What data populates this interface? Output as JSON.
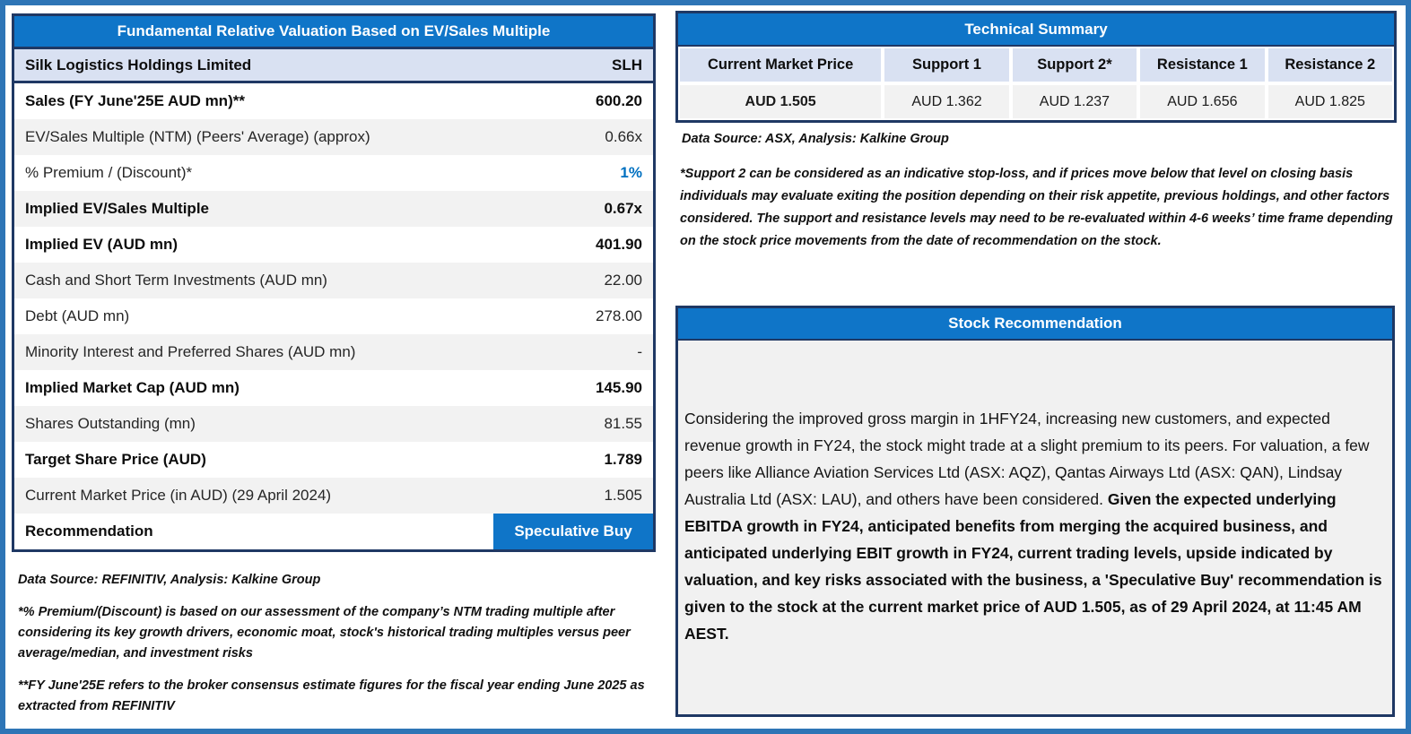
{
  "colors": {
    "frame_blue": "#2E75B6",
    "header_blue": "#0F75C8",
    "border_navy": "#1F3864",
    "light_blue_row": "#D9E1F2",
    "stripe_gray": "#F2F2F2",
    "premium_value_blue": "#0070C0"
  },
  "valuation": {
    "title": "Fundamental Relative Valuation Based on EV/Sales Multiple",
    "company": "Silk Logistics Holdings Limited",
    "ticker": "SLH",
    "rows": [
      {
        "label": "Sales (FY June'25E AUD mn)**",
        "value": "600.20"
      },
      {
        "label": "EV/Sales Multiple (NTM)  (Peers' Average) (approx)",
        "value": "0.66x"
      },
      {
        "label": "% Premium / (Discount)*",
        "value": "1%"
      },
      {
        "label": "Implied EV/Sales Multiple",
        "value": "0.67x"
      },
      {
        "label": "Implied EV (AUD mn)",
        "value": "401.90"
      },
      {
        "label": "Cash and Short Term Investments (AUD mn)",
        "value": "22.00"
      },
      {
        "label": "Debt (AUD mn)",
        "value": "278.00"
      },
      {
        "label": "Minority Interest and Preferred Shares (AUD mn)",
        "value": "-"
      },
      {
        "label": "Implied Market Cap (AUD mn)",
        "value": "145.90"
      },
      {
        "label": "Shares Outstanding (mn)",
        "value": "81.55"
      },
      {
        "label": "Target Share Price (AUD)",
        "value": "1.789"
      },
      {
        "label": "Current Market Price (in AUD) (29 April 2024)",
        "value": "1.505"
      }
    ],
    "recommendation_label": "Recommendation",
    "recommendation_value": "Speculative Buy",
    "source": "Data Source: REFINITIV, Analysis: Kalkine Group",
    "footnote_premium": "*% Premium/(Discount) is based on our assessment of the company’s NTM trading multiple after considering its key growth drivers, economic moat, stock's historical trading multiples versus peer average/median, and investment risks",
    "footnote_fy": "**FY June'25E refers to the broker consensus estimate figures for the fiscal year ending June 2025 as extracted from REFINITIV"
  },
  "technical": {
    "title": "Technical Summary",
    "columns": [
      {
        "header": "Current Market Price",
        "value": "AUD 1.505"
      },
      {
        "header": "Support 1",
        "value": "AUD 1.362"
      },
      {
        "header": "Support 2*",
        "value": "AUD 1.237"
      },
      {
        "header": "Resistance 1",
        "value": "AUD 1.656"
      },
      {
        "header": "Resistance 2",
        "value": "AUD 1.825"
      }
    ],
    "source": "Data Source: ASX, Analysis: Kalkine Group",
    "footnote": "*Support 2 can be considered as an indicative stop-loss, and if prices move below that level on closing basis individuals may evaluate exiting the position depending on their risk appetite, previous holdings, and other factors considered. The support and resistance levels may need to be re-evaluated within 4-6 weeks’ time frame depending on the stock price movements from the date of recommendation on the stock."
  },
  "recommendation": {
    "title": "Stock Recommendation",
    "body_regular": "Considering the improved gross margin in 1HFY24, increasing new customers, and expected revenue growth in FY24, the stock might trade at a slight premium to its peers. For valuation, a few peers like Alliance Aviation Services Ltd (ASX: AQZ), Qantas Airways Ltd (ASX: QAN), Lindsay Australia Ltd (ASX: LAU), and others have been considered. ",
    "body_bold": "Given the expected underlying EBITDA growth in FY24, anticipated benefits from merging the acquired business, and anticipated underlying EBIT growth in FY24, current trading levels, upside indicated by valuation, and key risks associated with the business, a 'Speculative Buy' recommendation is given to the stock at the current market price of AUD 1.505, as of 29 April 2024, at 11:45 AM AEST."
  }
}
